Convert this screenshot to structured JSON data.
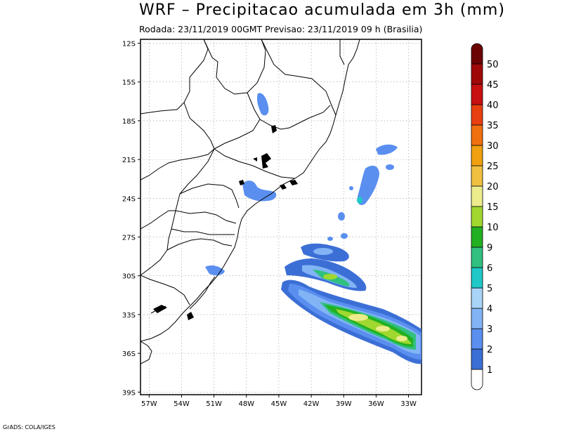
{
  "header": {
    "title": "WRF – Precipitacao acumulada em 3h (mm)",
    "subtitle": "Rodada: 23/11/2019 00GMT Previsao: 23/11/2019 09 h (Brasilia)"
  },
  "map": {
    "lat_labels": [
      "12S",
      "15S",
      "18S",
      "21S",
      "24S",
      "27S",
      "30S",
      "33S",
      "36S",
      "39S"
    ],
    "lon_labels": [
      "57W",
      "54W",
      "51W",
      "48W",
      "45W",
      "42W",
      "39W",
      "36W",
      "33W"
    ],
    "lat_values": [
      -12,
      -15,
      -18,
      -21,
      -24,
      -27,
      -30,
      -33,
      -36,
      -39
    ],
    "lon_values": [
      -57,
      -54,
      -51,
      -48,
      -45,
      -42,
      -39,
      -36,
      -33
    ],
    "extent": {
      "lon_min": -57.8,
      "lon_max": -31.8,
      "lat_min": -39.2,
      "lat_max": -11.7
    }
  },
  "legend": {
    "labels": [
      "1",
      "2",
      "3",
      "4",
      "5",
      "6",
      "9",
      "10",
      "15",
      "20",
      "25",
      "30",
      "35",
      "40",
      "45",
      "50"
    ],
    "colors": [
      "#ffffff",
      "#3c6fd6",
      "#5a8ff0",
      "#82b4f5",
      "#a8d4f8",
      "#20c8c8",
      "#30c080",
      "#22b022",
      "#a0d830",
      "#ecec8c",
      "#f0c040",
      "#f0a010",
      "#f07010",
      "#e84010",
      "#c81010",
      "#a00808",
      "#6c0404"
    ]
  },
  "footer": {
    "credit": "GrADS: COLA/IGES"
  }
}
